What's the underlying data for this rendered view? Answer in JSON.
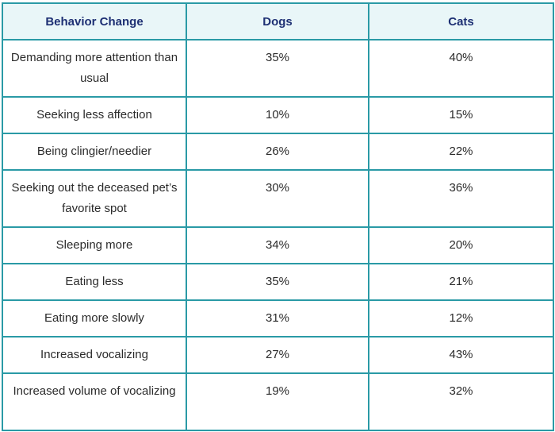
{
  "table": {
    "headers": [
      "Behavior Change",
      "Dogs",
      "Cats"
    ],
    "rows": [
      {
        "behavior": "Demanding more attention than usual",
        "dogs": "35%",
        "cats": "40%"
      },
      {
        "behavior": "Seeking less affection",
        "dogs": "10%",
        "cats": "15%"
      },
      {
        "behavior": "Being clingier/needier",
        "dogs": "26%",
        "cats": "22%"
      },
      {
        "behavior": "Seeking out the deceased pet’s favorite spot",
        "dogs": "30%",
        "cats": "36%"
      },
      {
        "behavior": "Sleeping more",
        "dogs": "34%",
        "cats": "20%"
      },
      {
        "behavior": "Eating less",
        "dogs": "35%",
        "cats": "21%"
      },
      {
        "behavior": "Eating more slowly",
        "dogs": "31%",
        "cats": "12%"
      },
      {
        "behavior": "Increased vocalizing",
        "dogs": "27%",
        "cats": "43%"
      },
      {
        "behavior": "Increased volume of vocalizing",
        "dogs": "19%",
        "cats": "32%"
      }
    ]
  },
  "colors": {
    "border": "#2a9aa6",
    "header_bg": "#e9f6f8",
    "header_text": "#1d2f73"
  }
}
